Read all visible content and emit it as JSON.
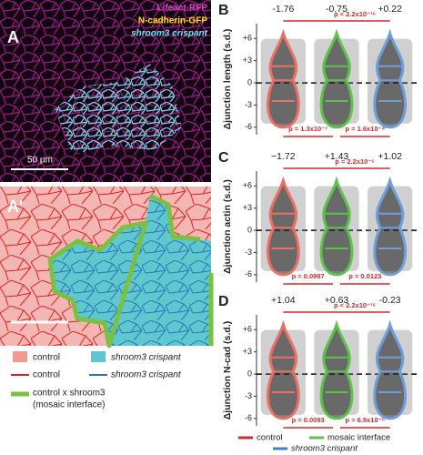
{
  "panel_a": {
    "label": "A",
    "channels": [
      "Lifeact-RFP",
      "N-cadherin-GFP",
      "shroom3 crispant"
    ],
    "scale_bar": "50 µm"
  },
  "panel_a2": {
    "label": "A'"
  },
  "legend_a": {
    "fills": [
      "control",
      "shroom3 crispant"
    ],
    "lines": [
      "control",
      "shroom3 crispant"
    ],
    "interface": [
      "control x shroom3",
      "(mosaic interface)"
    ]
  },
  "chart_data": [
    {
      "type": "violin",
      "panel_label": "B",
      "y_label": "Δjunction length (s.d.)",
      "categories": [
        "control",
        "mosaic interface",
        "shroom3 crispant"
      ],
      "colors": [
        "#ec6f66",
        "#5cc24a",
        "#6f9edb"
      ],
      "values": [
        -1.76,
        -0.75,
        0.22
      ],
      "value_labels": [
        "-1.76",
        "-0.75",
        "+0.22"
      ],
      "comparisons": [
        "p < 2.2x10⁻¹⁶",
        "p = 1.3x10⁻⁷",
        "p = 1.6x10⁻⁴"
      ],
      "ylim": [
        -7,
        8
      ],
      "yticks": [
        {
          "value": 6,
          "label": "+6"
        },
        {
          "value": 3,
          "label": "+3"
        },
        0,
        -3,
        -6
      ]
    },
    {
      "type": "violin",
      "panel_label": "C",
      "y_label": "Δjunction actin (s.d.)",
      "categories": [
        "control",
        "mosaic interface",
        "shroom3 crispant"
      ],
      "colors": [
        "#ec6f66",
        "#5cc24a",
        "#6f9edb"
      ],
      "values": [
        -1.72,
        1.43,
        1.02
      ],
      "value_labels": [
        "−1.72",
        "+1.43",
        "+1.02"
      ],
      "comparisons": [
        "p = 2.2x10⁻⁶",
        "p = 0.0997",
        "p = 0.0123"
      ],
      "ylim": [
        -7,
        8
      ],
      "yticks": [
        {
          "value": 6,
          "label": "+6"
        },
        {
          "value": 3,
          "label": "+3"
        },
        0,
        -3,
        -6
      ]
    },
    {
      "type": "violin",
      "panel_label": "D",
      "y_label": "Δjunction N-cad (s.d.)",
      "categories": [
        "control",
        "mosaic interface",
        "shroom3 crispant"
      ],
      "colors": [
        "#ec6f66",
        "#5cc24a",
        "#6f9edb"
      ],
      "values": [
        1.04,
        0.63,
        -0.23
      ],
      "value_labels": [
        "+1.04",
        "+0.63",
        "-0.23"
      ],
      "comparisons": [
        "p < 2.2x10⁻¹⁶",
        "p = 0.0093",
        "p = 6.9x10⁻⁵"
      ],
      "ylim": [
        -7,
        8
      ],
      "yticks": [
        {
          "value": 6,
          "label": "+6"
        },
        {
          "value": 3,
          "label": "+3"
        },
        0,
        -3,
        -6
      ]
    }
  ],
  "legend": {
    "items": [
      {
        "label": "control",
        "color": "#d9262a"
      },
      {
        "label": "mosaic interface",
        "color": "#5cc24a"
      },
      {
        "label": "shroom3 crispant",
        "color": "#3f7fd0"
      }
    ]
  }
}
